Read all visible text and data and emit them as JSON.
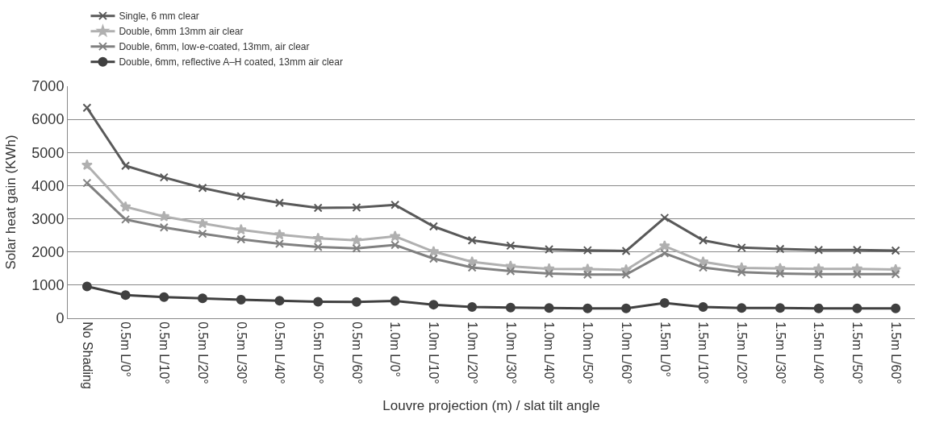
{
  "chart_data": {
    "type": "line",
    "xlabel": "Louvre projection (m) / slat tilt angle",
    "ylabel": "Solar heat gain (KWh)",
    "categories": [
      "No Shading",
      "0.5m L/0°",
      "0.5m L/10°",
      "0.5m L/20°",
      "0.5m L/30°",
      "0.5m L/40°",
      "0.5m L/50°",
      "0.5m L/60°",
      "1.0m L/0°",
      "1.0m L/10°",
      "1.0m L/20°",
      "1.0m L/30°",
      "1.0m L/40°",
      "1.0m L/50°",
      "1.0m L/60°",
      "1.5m L/0°",
      "1.5m L/10°",
      "1.5m L/20°",
      "1.5m L/30°",
      "1.5m L/40°",
      "1.5m L/50°",
      "1.5m L/60°"
    ],
    "series": [
      {
        "name": "Single, 6 mm clear",
        "color": "#595959",
        "marker": "cross",
        "values": [
          6350,
          4600,
          4250,
          3930,
          3680,
          3480,
          3330,
          3340,
          3420,
          2770,
          2350,
          2190,
          2080,
          2050,
          2030,
          3030,
          2350,
          2130,
          2090,
          2060,
          2060,
          2040
        ]
      },
      {
        "name": "Double, 6mm 13mm air clear",
        "color": "#b0b0b0",
        "marker": "star",
        "values": [
          4620,
          3360,
          3070,
          2860,
          2670,
          2520,
          2410,
          2350,
          2470,
          2010,
          1700,
          1570,
          1490,
          1480,
          1460,
          2180,
          1700,
          1520,
          1500,
          1490,
          1490,
          1470
        ]
      },
      {
        "name": "Double, 6mm, low-e-coated, 13mm, air clear",
        "color": "#808080",
        "marker": "cross",
        "values": [
          4080,
          2980,
          2740,
          2550,
          2380,
          2250,
          2150,
          2110,
          2210,
          1800,
          1530,
          1420,
          1350,
          1320,
          1320,
          1960,
          1530,
          1390,
          1350,
          1330,
          1330,
          1330
        ]
      },
      {
        "name": "Double, 6mm, reflective A–H coated, 13mm air clear",
        "color": "#404040",
        "marker": "circle",
        "values": [
          960,
          700,
          640,
          600,
          560,
          530,
          500,
          490,
          520,
          410,
          340,
          320,
          310,
          300,
          300,
          460,
          340,
          310,
          310,
          300,
          300,
          300
        ]
      }
    ],
    "ylim": [
      0,
      7000
    ],
    "yticks": [
      0,
      1000,
      2000,
      3000,
      4000,
      5000,
      6000,
      7000
    ],
    "grid": "y",
    "legend": "top"
  }
}
